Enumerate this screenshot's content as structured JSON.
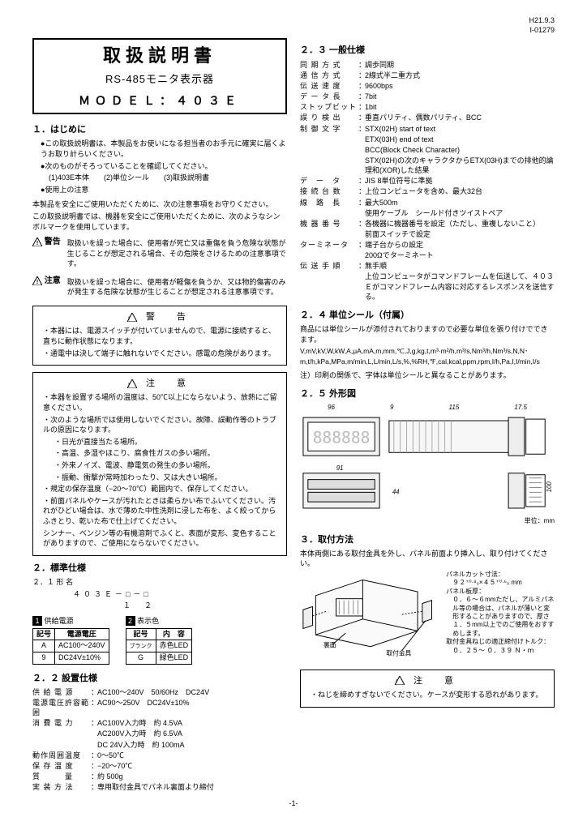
{
  "header": {
    "line1": "H21.9.3",
    "line2": "I-01279"
  },
  "titlebox": {
    "main": "取扱説明書",
    "sub": "RS-485モニタ表示器",
    "model": "ＭＯＤＥＬ：４０３Ｅ"
  },
  "sec1": {
    "head": "１．はじめに",
    "p1": "●この取扱説明書は、本製品をお使いになる担当者のお手元に確実に届くようお取り計らいください。",
    "p2": "●次のものがそろっていることを確認してください。",
    "p3": "(1)403E本体　　(2)単位シール　　(3)取扱説明書",
    "p4": "●使用上の注意",
    "p5": "本製品を安全にご使用いただくために、次の注意事項をお守りください。",
    "p6": "この取扱説明書では、機器を安全にご使用いただくために、次のようなシンボルマークを使用しています。",
    "warn_label": "警告",
    "warn_text": "取扱いを誤った場合に、使用者が死亡又は重傷を負う危険な状態が生じることが想定される場合、その危険をさけるための注意事項です。",
    "caution_label": "注意",
    "caution_text": "取扱いを誤った場合に、使用者が軽傷を負うか、又は物的傷害のみが発生する危険な状態が生じることが想定される注意事項です。"
  },
  "warnbox": {
    "title": "警　告",
    "li1": "・本器には、電源スイッチが付いていませんので、電源に接続すると、直ちに動作状態になります。",
    "li2": "・通電中は決して端子に触れないでください。感電の危険があります。"
  },
  "cautionbox": {
    "title": "注　意",
    "li1": "・本器を設置する場所の温度は、50℃以上にならないよう、放熱にご留意ください。",
    "li2": "・次のような場所では使用しないでください。故障、誤動作等のトラブルの原因になります。",
    "s1": "・日光が直接当たる場所。",
    "s2": "・高温、多湿やほこり、腐食性ガスの多い場所。",
    "s3": "・外来ノイズ、電波、静電気の発生の多い場所。",
    "s4": "・振動、衝撃が常時加わったり、又は大きい場所。",
    "li3": "・規定の保存温度（−20〜70℃）範囲内で、保存してください。",
    "li4": "・前面パネルやケースが汚れたときは柔らかい布でふいてください。汚れがひどい場合は、水で薄めた中性洗剤に浸した布を、よく絞ってからふきとり、乾いた布で仕上げてください。",
    "li5": "シンナー、ベンジン等の有機溶剤でふくと、表面が変形、変色することがありますので、ご使用にならないでください。"
  },
  "sec2": {
    "head": "２．標準仕様",
    "sub1": "２．１ 形 名",
    "model_line": "４０３Ｅ－□－□",
    "model_index": "１　２",
    "supply_label": "供給電源",
    "display_label": "表示色",
    "t1h1": "記号",
    "t1h2": "電源電圧",
    "t1r1c1": "A",
    "t1r1c2": "AC100〜240V",
    "t1r2c1": "9",
    "t1r2c2": "DC24V±10%",
    "t2h1": "記号",
    "t2h2": "内　容",
    "t2r1c1": "ブランク",
    "t2r1c2": "赤色LED",
    "t2r2c1": "G",
    "t2r2c2": "緑色LED"
  },
  "sec22": {
    "head": "２．２ 設置仕様",
    "rows": [
      {
        "l": "供 給 電 源",
        "v": "AC100〜240V　50/60Hz　DC24V"
      },
      {
        "l": "電源電圧許容範囲",
        "v": "AC90〜250V　DC24V±10%"
      },
      {
        "l": "消 費 電 力",
        "v": "AC100V入力時　約 4.5VA"
      },
      {
        "l": "",
        "v": "AC200V入力時　約 6.5VA"
      },
      {
        "l": "",
        "v": "DC 24V入力時　約 100mA"
      },
      {
        "l": "動作周囲温度",
        "v": "0〜50℃"
      },
      {
        "l": "保 存 温 度",
        "v": "−20〜70℃"
      },
      {
        "l": "質　　　量",
        "v": "約 500g"
      },
      {
        "l": "実 装 方 法",
        "v": "専用取付金具でパネル裏面より締付"
      }
    ]
  },
  "sec23": {
    "head": "２．３ 一般仕様",
    "rows": [
      {
        "l": "同 期 方 式",
        "v": "調歩同期"
      },
      {
        "l": "通 信 方 式",
        "v": "2線式半二重方式"
      },
      {
        "l": "伝 送 速 度",
        "v": "9600bps"
      },
      {
        "l": "デ ー タ 長",
        "v": "7bit"
      },
      {
        "l": "ストップビット",
        "v": "1bit"
      },
      {
        "l": "誤 り 検 出",
        "v": "垂直パリティ、偶数パリティ、BCC"
      },
      {
        "l": "制 御 文 字",
        "v": "STX(02H) start of text"
      },
      {
        "l": "",
        "v": "ETX(03H) end of text"
      },
      {
        "l": "",
        "v": "BCC(Block Check Character)"
      },
      {
        "l": "",
        "v": "STX(02H)の次のキャラクタからETX(03H)までの排他的論理和(XOR)した結果"
      },
      {
        "l": "デ　ー　タ",
        "v": "JIS 8単位符号に準拠"
      },
      {
        "l": "接 続 台 数",
        "v": "上位コンピュータを含め、最大32台"
      },
      {
        "l": "線　路　長",
        "v": "最大500m"
      },
      {
        "l": "",
        "v": "使用ケーブル　シールド付きツイストペア"
      },
      {
        "l": "機 器 番 号",
        "v": "各機器に機器番号を設定（ただし、重複しないこと）"
      },
      {
        "l": "",
        "v": "前面スイッチで設定"
      },
      {
        "l": "ターミネータ",
        "v": "端子台からの設定"
      },
      {
        "l": "",
        "v": "200Ωでターミネート"
      },
      {
        "l": "伝 送 手 順",
        "v": "無手順"
      },
      {
        "l": "",
        "v": "上位コンピュータがコマンドフレームを伝送して、４０３Ｅがコマンドフレーム内容に対応するレスポンスを送信する。"
      }
    ]
  },
  "sec24": {
    "head": "２．４ 単位シール（付属）",
    "p1": "商品には単位シールが添付されておりますので必要な単位を張り付けでできます。",
    "units": "V,mV,kV,W,kW,A,μA,mA,m,mm,℃,J,g,kg,t,m³·m²/h,m³/s,Nm³/h,Nm³/s,N,N･m,t/h,kPa,MPa,m/min,L,L/min,L/s,%,%RH,℉,cal,kcal,ppm,rpm,I/h,Pa,I,I/min,I/s",
    "note": "注）印刷の関係で、字体は単位シールと異なることがあります。"
  },
  "sec25": {
    "head": "２．５ 外形図",
    "dims": {
      "d1": "96",
      "d2": "9",
      "d3": "115",
      "d4": "17.5",
      "d5": "91",
      "d6": "44",
      "d7": "100"
    },
    "unit_note": "単位：mm"
  },
  "sec3": {
    "head": "３．取付方法",
    "p1": "本体両側にある取付金具を外し、パネル前面より挿入し、取り付けてください。",
    "fig_labels": {
      "back": "裏面",
      "bracket": "取付金具"
    },
    "note_title": "パネルカット寸法：",
    "note1": "９２⁺⁰·⁸₀×４５⁺⁰·⁶₀ mm",
    "note2_title": "パネル板厚：",
    "note2": "０．６〜６mmただし、アルミパネル等の場合は、パネルが薄いと変形することがありますので、厚さ１．５mm以上でのご使用をおすすめします。",
    "note3_title": "取付金具ねじの適正締付けトルク：",
    "note3": "０．２５〜 ０．３９ Ｎ・ｍ"
  },
  "cautionbox2": {
    "title": "注　意",
    "li1": "・ねじを締めすぎないでください。ケースが変形する恐れがあります。"
  },
  "pagenum": "-1-"
}
